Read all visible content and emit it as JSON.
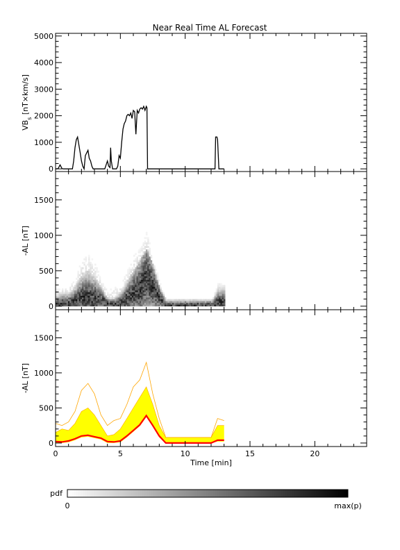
{
  "title": "Near Real Time AL Forecast",
  "colors": {
    "axis": "#000000",
    "vbs_line": "#000000",
    "forecast_band": "#ffff00",
    "forecast_envelope": "#ffa500",
    "forecast_median": "#ff0000"
  },
  "colorbar": {
    "label": "pdf",
    "min_label": "0",
    "max_label": "max(p)"
  },
  "chart_data": [
    {
      "type": "line",
      "panel": "vbs",
      "xlim": [
        0,
        24
      ],
      "ylim": [
        -100,
        5100
      ],
      "yticks": [
        "0",
        "1000",
        "2000",
        "3000",
        "4000",
        "5000"
      ],
      "yticks_values": [
        0,
        1000,
        2000,
        3000,
        4000,
        5000
      ],
      "ylabel": "VB_s [nT×km/s]",
      "x": [
        0,
        0.2,
        0.35,
        0.5,
        0.6,
        0.8,
        1.0,
        1.3,
        1.4,
        1.5,
        1.6,
        1.7,
        1.8,
        1.9,
        2.0,
        2.1,
        2.2,
        2.3,
        2.4,
        2.5,
        2.6,
        2.7,
        2.8,
        2.9,
        3.0,
        3.1,
        3.2,
        3.4,
        3.6,
        3.8,
        4.0,
        4.1,
        4.2,
        4.25,
        4.3,
        4.4,
        4.5,
        4.6,
        4.7,
        4.8,
        4.9,
        5.0,
        5.1,
        5.2,
        5.3,
        5.4,
        5.5,
        5.6,
        5.7,
        5.8,
        5.9,
        6.0,
        6.1,
        6.2,
        6.3,
        6.4,
        6.5,
        6.6,
        6.7,
        6.8,
        6.9,
        7.0,
        7.05,
        7.1,
        8.0,
        10.0,
        12.0,
        12.3,
        12.35,
        12.45,
        12.5,
        12.6,
        12.9,
        13.0
      ],
      "y": [
        0,
        10,
        150,
        10,
        0,
        0,
        0,
        0,
        300,
        800,
        1100,
        1200,
        900,
        600,
        300,
        100,
        0,
        500,
        600,
        700,
        400,
        300,
        100,
        0,
        0,
        0,
        0,
        0,
        0,
        0,
        300,
        100,
        50,
        800,
        300,
        0,
        0,
        0,
        0,
        100,
        500,
        400,
        1000,
        1500,
        1700,
        1800,
        2000,
        2050,
        2000,
        2100,
        1900,
        2200,
        2150,
        1300,
        2200,
        2100,
        2250,
        2300,
        2250,
        2350,
        2200,
        2350,
        2300,
        0,
        0,
        0,
        0,
        0,
        1200,
        1200,
        1100,
        0,
        0,
        0
      ]
    },
    {
      "type": "heatmap",
      "panel": "al_pdf",
      "xlim": [
        0,
        24
      ],
      "ylim": [
        -50,
        1900
      ],
      "yticks": [
        "0",
        "500",
        "1000",
        "1500"
      ],
      "yticks_values": [
        0,
        500,
        1000,
        1500
      ],
      "ylabel": "-AL [nT]",
      "x": [
        0,
        0.5,
        1,
        1.5,
        2,
        2.5,
        3,
        3.5,
        4,
        4.5,
        5,
        5.5,
        6,
        6.5,
        7,
        7.5,
        8,
        8.5,
        9,
        10,
        11,
        12,
        12.5,
        13
      ],
      "median": [
        20,
        15,
        30,
        60,
        100,
        110,
        90,
        70,
        20,
        15,
        30,
        100,
        180,
        260,
        390,
        250,
        100,
        0,
        0,
        0,
        0,
        0,
        40,
        40
      ],
      "upper": [
        150,
        200,
        180,
        280,
        450,
        500,
        400,
        250,
        100,
        120,
        200,
        350,
        500,
        650,
        800,
        550,
        250,
        80,
        80,
        80,
        80,
        80,
        250,
        250
      ],
      "max": [
        280,
        250,
        300,
        450,
        750,
        850,
        700,
        400,
        250,
        320,
        350,
        550,
        800,
        900,
        1150,
        700,
        350,
        80,
        80,
        80,
        80,
        80,
        350,
        320
      ]
    },
    {
      "type": "area",
      "panel": "al_forecast",
      "xlim": [
        0,
        24
      ],
      "ylim": [
        -50,
        1900
      ],
      "yticks": [
        "0",
        "500",
        "1000",
        "1500"
      ],
      "yticks_values": [
        0,
        500,
        1000,
        1500
      ],
      "ylabel": "-AL [nT]",
      "xlabel": "Time [min]",
      "xticks": [
        "0",
        "5",
        "10",
        "15",
        "20"
      ],
      "xticks_values": [
        0,
        5,
        10,
        15,
        20
      ],
      "x": [
        0,
        0.5,
        1,
        1.5,
        2,
        2.5,
        3,
        3.5,
        4,
        4.5,
        5,
        5.5,
        6,
        6.5,
        7,
        7.5,
        8,
        8.5,
        9,
        10,
        11,
        12,
        12.5,
        13
      ],
      "median": [
        20,
        15,
        30,
        60,
        100,
        110,
        90,
        70,
        20,
        15,
        30,
        100,
        180,
        260,
        390,
        250,
        100,
        0,
        0,
        0,
        0,
        0,
        40,
        40
      ],
      "upper": [
        150,
        200,
        180,
        280,
        450,
        500,
        400,
        250,
        100,
        120,
        200,
        350,
        500,
        650,
        800,
        550,
        250,
        80,
        80,
        80,
        80,
        80,
        250,
        250
      ],
      "max": [
        280,
        250,
        300,
        450,
        750,
        850,
        700,
        400,
        250,
        320,
        350,
        550,
        800,
        900,
        1150,
        700,
        350,
        80,
        80,
        80,
        80,
        80,
        350,
        320
      ]
    }
  ]
}
